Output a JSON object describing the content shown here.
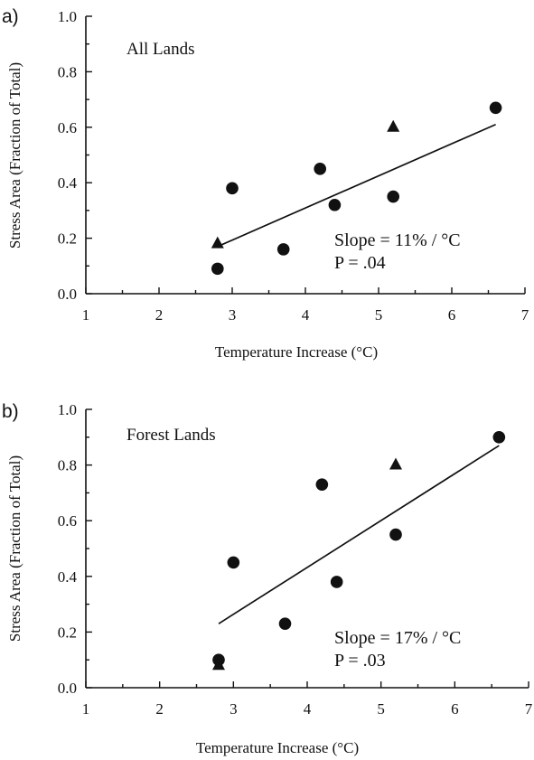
{
  "chart_data": [
    {
      "type": "scatter",
      "panel_label": "a)",
      "title": "All Lands",
      "xlabel": "Temperature Increase (°C)",
      "ylabel": "Stress Area (Fraction of Total)",
      "xlim": [
        1,
        7
      ],
      "ylim": [
        0,
        1
      ],
      "xticks": [
        1,
        2,
        3,
        4,
        5,
        6,
        7
      ],
      "yticks": [
        "0.0",
        "0.2",
        "0.4",
        "0.6",
        "0.8",
        "1.0"
      ],
      "series": [
        {
          "marker": "circle",
          "x": [
            2.8,
            3.0,
            3.7,
            4.2,
            4.4,
            5.2,
            6.6
          ],
          "y": [
            0.09,
            0.38,
            0.16,
            0.45,
            0.32,
            0.35,
            0.67
          ]
        },
        {
          "marker": "triangle",
          "x": [
            2.8,
            5.2
          ],
          "y": [
            0.18,
            0.6
          ]
        }
      ],
      "fit_line": {
        "x": [
          2.8,
          6.6
        ],
        "y": [
          0.17,
          0.61
        ]
      },
      "annotations": [
        "Slope = 11% / °C",
        "P = .04"
      ],
      "grid": false,
      "legend": "none"
    },
    {
      "type": "scatter",
      "panel_label": "b)",
      "title": "Forest Lands",
      "xlabel": "Temperature Increase (°C)",
      "ylabel": "Stress Area (Fraction of Total)",
      "xlim": [
        1,
        7
      ],
      "ylim": [
        0,
        1
      ],
      "xticks": [
        1,
        2,
        3,
        4,
        5,
        6,
        7
      ],
      "yticks": [
        "0.0",
        "0.2",
        "0.4",
        "0.6",
        "0.8",
        "1.0"
      ],
      "series": [
        {
          "marker": "circle",
          "x": [
            2.8,
            3.0,
            3.7,
            4.2,
            4.4,
            5.2,
            6.6
          ],
          "y": [
            0.1,
            0.45,
            0.23,
            0.73,
            0.38,
            0.55,
            0.9
          ]
        },
        {
          "marker": "triangle",
          "x": [
            2.8,
            5.2
          ],
          "y": [
            0.08,
            0.8
          ]
        }
      ],
      "fit_line": {
        "x": [
          2.8,
          6.6
        ],
        "y": [
          0.23,
          0.87
        ]
      },
      "annotations": [
        "Slope = 17% / °C",
        "P = .03"
      ],
      "grid": false,
      "legend": "none"
    }
  ]
}
